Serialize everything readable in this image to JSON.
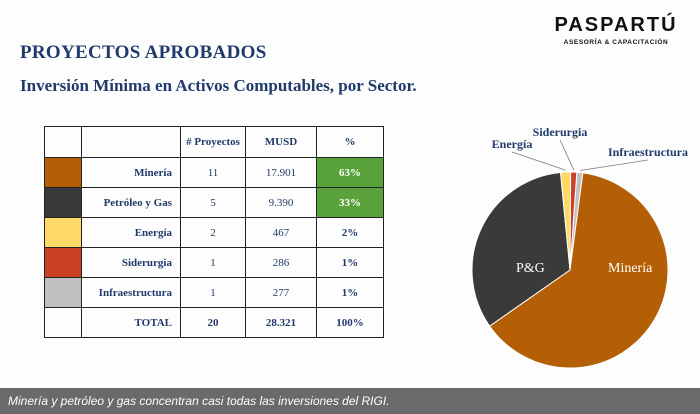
{
  "slide": {
    "title": "PROYECTOS APROBADOS",
    "subtitle": "Inversión Mínima en Activos Computables, por Sector.",
    "logo": {
      "brand": "PASPARTÚ",
      "tagline": "ASESORÍA & CAPACITACIÓN"
    }
  },
  "table": {
    "headers": [
      "",
      "",
      "# Proyectos",
      "MUSD",
      "%"
    ],
    "rows": [
      {
        "color": "#b45f06",
        "sector": "Minería",
        "proyectos": "11",
        "musd": "17.901",
        "pct": "63%"
      },
      {
        "color": "#3a3a3a",
        "sector": "Petróleo y Gas",
        "proyectos": "5",
        "musd": "9.390",
        "pct": "33%"
      },
      {
        "color": "#ffd966",
        "sector": "Energía",
        "proyectos": "2",
        "musd": "467",
        "pct": "2%"
      },
      {
        "color": "#cc4125",
        "sector": "Siderurgia",
        "proyectos": "1",
        "musd": "286",
        "pct": "1%"
      },
      {
        "color": "#c0c0c0",
        "sector": "Infraestructura",
        "proyectos": "1",
        "musd": "277",
        "pct": "1%"
      }
    ],
    "total": {
      "label": "TOTAL",
      "proyectos": "20",
      "musd": "28.321",
      "pct": "100%"
    },
    "highlight_color": "#5aa23b"
  },
  "chart_data": {
    "type": "pie",
    "slices": [
      {
        "label": "Minería",
        "value": 17901,
        "color": "#b45f06",
        "label_inside": true
      },
      {
        "label": "P&G",
        "value": 9390,
        "color": "#3a3a3a",
        "label_inside": true
      },
      {
        "label": "Energía",
        "value": 467,
        "color": "#ffd966",
        "label_inside": false
      },
      {
        "label": "Siderurgia",
        "value": 286,
        "color": "#cc4125",
        "label_inside": false
      },
      {
        "label": "Infraestructura",
        "value": 277,
        "color": "#c0c0c0",
        "label_inside": false
      }
    ]
  },
  "caption": "Minería y petróleo y gas concentran casi todas las inversiones del RIGI."
}
